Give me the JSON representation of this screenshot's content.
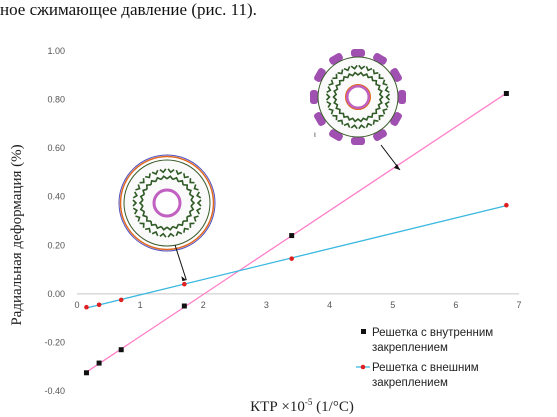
{
  "header_text": "ное сжимающее давление (рис. 11).",
  "chart_data": {
    "type": "scatter",
    "xlabel_parts": [
      "КТР ×10",
      "-5",
      " (1/°С)"
    ],
    "ylabel": "Радиальная деформация (%)",
    "xlim": [
      0,
      7
    ],
    "ylim": [
      -0.4,
      1.0
    ],
    "x_ticks": [
      0,
      1,
      2,
      3,
      4,
      5,
      6,
      7
    ],
    "y_ticks": [
      "-0.40",
      "-0.20",
      "0.00",
      "0.20",
      "0.40",
      "0.60",
      "0.80",
      "1.00"
    ],
    "grid": false,
    "legend_position": "bottom-right",
    "series": [
      {
        "name": "Решетка с внутренним закреплением",
        "legend_lines": [
          "Решетка с внутренним",
          "закреплением"
        ],
        "marker": "square",
        "color": "#ff80c8",
        "marker_color": "#111111",
        "x": [
          0.15,
          0.35,
          0.7,
          1.7,
          3.4,
          6.8
        ],
        "y": [
          -0.325,
          -0.285,
          -0.23,
          -0.05,
          0.24,
          0.825
        ]
      },
      {
        "name": "Решетка с внешним закреплением",
        "legend_lines": [
          "Решетка с внешним",
          "закреплением"
        ],
        "marker": "circle",
        "color": "#3cb8e0",
        "marker_color": "#e02020",
        "x": [
          0.15,
          0.35,
          0.7,
          1.7,
          3.4,
          6.8
        ],
        "y": [
          -0.055,
          -0.045,
          -0.025,
          0.04,
          0.145,
          0.365
        ]
      }
    ],
    "annotations": [
      {
        "label": "inner-clamped lattice ring",
        "text": "",
        "x": 1.35,
        "y": 0.3,
        "arrow_to": [
          1.7,
          0.04
        ]
      },
      {
        "label": "outer-clamped lattice ring",
        "text": "ι",
        "x": 4.0,
        "y": 0.72,
        "arrow_to": [
          4.6,
          0.5
        ]
      }
    ]
  }
}
